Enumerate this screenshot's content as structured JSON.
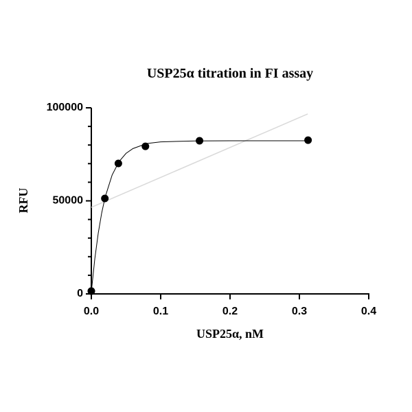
{
  "chart_data": {
    "type": "scatter",
    "title": "USP25α titration in FI assay",
    "x_label": "USP25α, nM",
    "y_label": "RFU",
    "x": [
      0,
      0.0195,
      0.039,
      0.078,
      0.156,
      0.3125
    ],
    "values": [
      1500,
      51300,
      70100,
      79300,
      82300,
      82600
    ],
    "color": "#000000",
    "fit": {
      "x": [
        0,
        0.005,
        0.01,
        0.015,
        0.02,
        0.03,
        0.04,
        0.05,
        0.06,
        0.08,
        0.1,
        0.15,
        0.2,
        0.25,
        0.3,
        0.3125
      ],
      "values": [
        1000,
        18800,
        32700,
        43600,
        52100,
        63900,
        71100,
        75500,
        78100,
        80800,
        81700,
        82200,
        82300,
        82300,
        82300,
        82300
      ],
      "color": "#000000"
    },
    "trend": {
      "x": [
        0,
        0.312
      ],
      "values": [
        46500,
        96700
      ],
      "color": "#d9d9d9"
    },
    "xlim": [
      0,
      0.4
    ],
    "xticks": [
      {
        "value": 0,
        "label": "0.0"
      },
      0.1,
      0.2,
      0.3,
      0.4
    ],
    "ylim": [
      0,
      100000
    ],
    "yticks": [
      0,
      50000,
      100000
    ],
    "yminorticks": [
      10000,
      20000,
      30000,
      40000,
      60000,
      70000,
      80000,
      90000
    ]
  }
}
